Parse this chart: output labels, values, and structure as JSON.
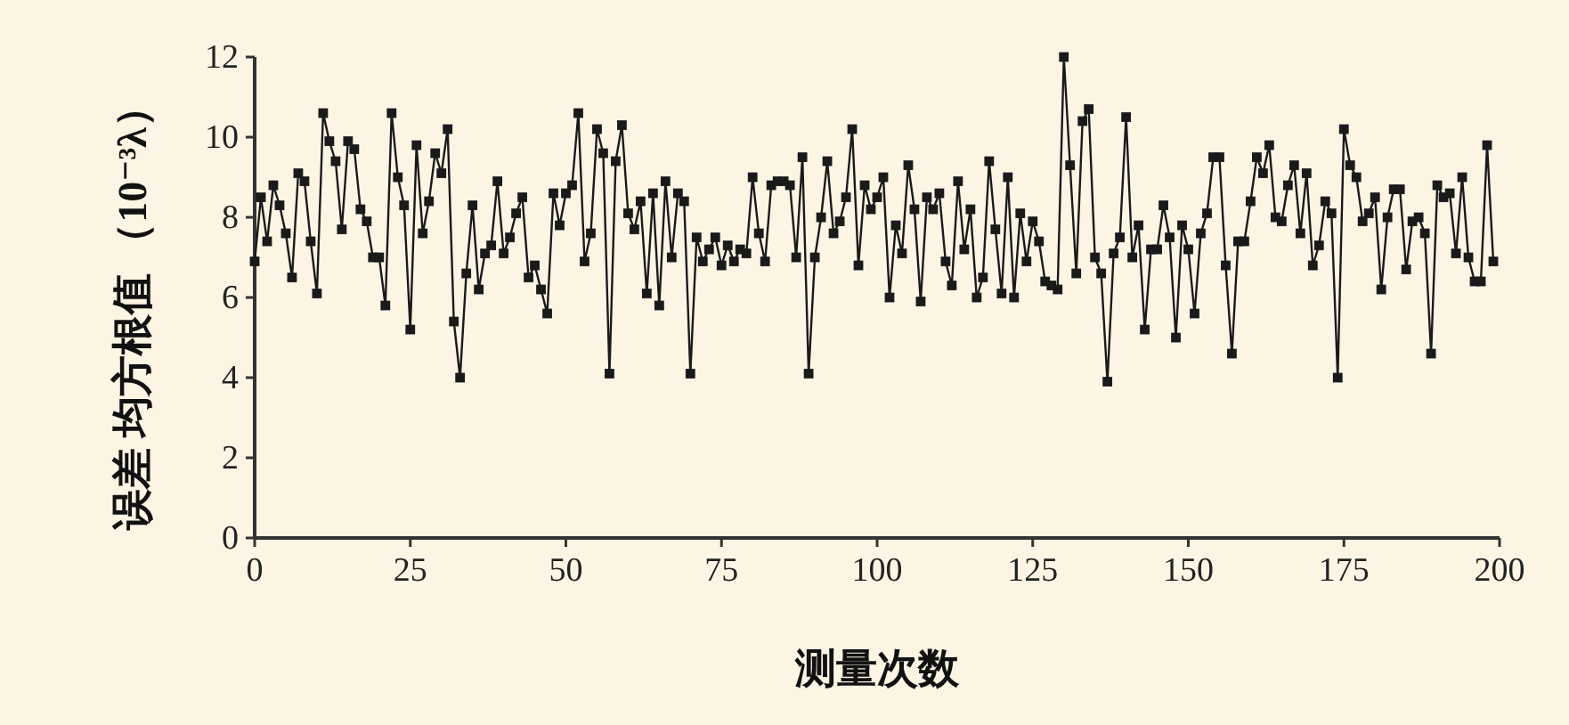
{
  "chart_data": {
    "type": "line",
    "xlabel": "测量次数",
    "ylabel": "误差 均方根值 （10⁻³λ）",
    "x": [
      0,
      1,
      2,
      3,
      4,
      5,
      6,
      7,
      8,
      9,
      10,
      11,
      12,
      13,
      14,
      15,
      16,
      17,
      18,
      19,
      20,
      21,
      22,
      23,
      24,
      25,
      26,
      27,
      28,
      29,
      30,
      31,
      32,
      33,
      34,
      35,
      36,
      37,
      38,
      39,
      40,
      41,
      42,
      43,
      44,
      45,
      46,
      47,
      48,
      49,
      50,
      51,
      52,
      53,
      54,
      55,
      56,
      57,
      58,
      59,
      60,
      61,
      62,
      63,
      64,
      65,
      66,
      67,
      68,
      69,
      70,
      71,
      72,
      73,
      74,
      75,
      76,
      77,
      78,
      79,
      80,
      81,
      82,
      83,
      84,
      85,
      86,
      87,
      88,
      89,
      90,
      91,
      92,
      93,
      94,
      95,
      96,
      97,
      98,
      99,
      100,
      101,
      102,
      103,
      104,
      105,
      106,
      107,
      108,
      109,
      110,
      111,
      112,
      113,
      114,
      115,
      116,
      117,
      118,
      119,
      120,
      121,
      122,
      123,
      124,
      125,
      126,
      127,
      128,
      129,
      130,
      131,
      132,
      133,
      134,
      135,
      136,
      137,
      138,
      139,
      140,
      141,
      142,
      143,
      144,
      145,
      146,
      147,
      148,
      149,
      150,
      151,
      152,
      153,
      154,
      155,
      156,
      157,
      158,
      159,
      160,
      161,
      162,
      163,
      164,
      165,
      166,
      167,
      168,
      169,
      170,
      171,
      172,
      173,
      174,
      175,
      176,
      177,
      178,
      179,
      180,
      181,
      182,
      183,
      184,
      185,
      186,
      187,
      188,
      189,
      190,
      191,
      192,
      193,
      194,
      195,
      196,
      197,
      198,
      199
    ],
    "series": [
      {
        "color": "#1a1a1a",
        "values": [
          6.9,
          8.5,
          7.4,
          8.8,
          8.3,
          7.6,
          6.5,
          9.1,
          8.9,
          7.4,
          6.1,
          10.6,
          9.9,
          9.4,
          7.7,
          9.9,
          9.7,
          8.2,
          7.9,
          7.0,
          7.0,
          5.8,
          10.6,
          9.0,
          8.3,
          5.2,
          9.8,
          7.6,
          8.4,
          9.6,
          9.1,
          10.2,
          5.4,
          4.0,
          6.6,
          8.3,
          6.2,
          7.1,
          7.3,
          8.9,
          7.1,
          7.5,
          8.1,
          8.5,
          6.5,
          6.8,
          6.2,
          5.6,
          8.6,
          7.8,
          8.6,
          8.8,
          10.6,
          6.9,
          7.6,
          10.2,
          9.6,
          4.1,
          9.4,
          10.3,
          8.1,
          7.7,
          8.4,
          6.1,
          8.6,
          5.8,
          8.9,
          7.0,
          8.6,
          8.4,
          4.1,
          7.5,
          6.9,
          7.2,
          7.5,
          6.8,
          7.3,
          6.9,
          7.2,
          7.1,
          9.0,
          7.6,
          6.9,
          8.8,
          8.9,
          8.9,
          8.8,
          7.0,
          9.5,
          4.1,
          7.0,
          8.0,
          9.4,
          7.6,
          7.9,
          8.5,
          10.2,
          6.8,
          8.8,
          8.2,
          8.5,
          9.0,
          6.0,
          7.8,
          7.1,
          9.3,
          8.2,
          5.9,
          8.5,
          8.2,
          8.6,
          6.9,
          6.3,
          8.9,
          7.2,
          8.2,
          6.0,
          6.5,
          9.4,
          7.7,
          6.1,
          9.0,
          6.0,
          8.1,
          6.9,
          7.9,
          7.4,
          6.4,
          6.3,
          6.2,
          12.0,
          9.3,
          6.6,
          10.4,
          10.7,
          7.0,
          6.6,
          3.9,
          7.1,
          7.5,
          10.5,
          7.0,
          7.8,
          5.2,
          7.2,
          7.2,
          8.3,
          7.5,
          5.0,
          7.8,
          7.2,
          5.6,
          7.6,
          8.1,
          9.5,
          9.5,
          6.8,
          4.6,
          7.4,
          7.4,
          8.4,
          9.5,
          9.1,
          9.8,
          8.0,
          7.9,
          8.8,
          9.3,
          7.6,
          9.1,
          6.8,
          7.3,
          8.4,
          8.1,
          4.0,
          10.2,
          9.3,
          9.0,
          7.9,
          8.1,
          8.5,
          6.2,
          8.0,
          8.7,
          8.7,
          6.7,
          7.9,
          8.0,
          7.6,
          4.6,
          8.8,
          8.5,
          8.6,
          7.1,
          9.0,
          7.0,
          6.4,
          6.4,
          9.8,
          6.9
        ]
      }
    ],
    "xlim": [
      0,
      200
    ],
    "xticks": [
      0,
      25,
      50,
      75,
      100,
      125,
      150,
      175,
      200
    ],
    "ylim": [
      0,
      12
    ],
    "yticks": [
      0,
      2,
      4,
      6,
      8,
      10,
      12
    ],
    "grid": false,
    "marker": "square",
    "line_style": "solid"
  }
}
